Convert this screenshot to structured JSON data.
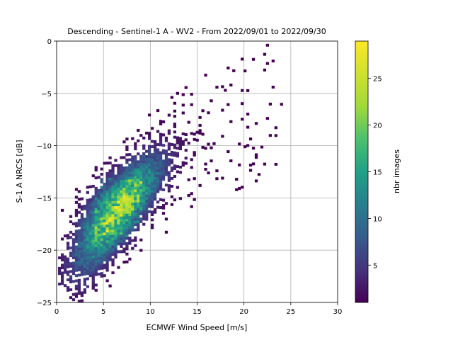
{
  "chart_data": {
    "type": "heatmap",
    "title": "Descending - Sentinel-1 A - WV2 - From 2022/09/01 to 2022/09/30",
    "xlabel": "ECMWF Wind Speed [m/s]",
    "ylabel": "S-1 A NRCS [dB]",
    "xlim": [
      0,
      30
    ],
    "ylim": [
      -25,
      0
    ],
    "xticks": [
      0,
      5,
      10,
      15,
      20,
      25,
      30
    ],
    "yticks": [
      0,
      -5,
      -10,
      -15,
      -20,
      -25
    ],
    "xtick_labels": [
      "0",
      "5",
      "10",
      "15",
      "20",
      "25",
      "30"
    ],
    "ytick_labels": [
      "0",
      "−5",
      "−10",
      "−15",
      "−20",
      "−25"
    ],
    "grid": true,
    "colormap": "viridis",
    "colorbar": {
      "label": "nbr images",
      "min": 1,
      "max": 29,
      "ticks": [
        5,
        10,
        15,
        20,
        25
      ],
      "tick_labels": [
        "5",
        "10",
        "15",
        "20",
        "25"
      ]
    },
    "density_ridge": [
      {
        "wind": 1,
        "nrcs": -21.5
      },
      {
        "wind": 3,
        "nrcs": -19.5
      },
      {
        "wind": 5,
        "nrcs": -17.5
      },
      {
        "wind": 7,
        "nrcs": -15.8
      },
      {
        "wind": 9,
        "nrcs": -14.0
      },
      {
        "wind": 11,
        "nrcs": -12.5
      },
      {
        "wind": 13,
        "nrcs": -11.2
      },
      {
        "wind": 15,
        "nrcs": -10.0
      },
      {
        "wind": 18,
        "nrcs": -8.5
      },
      {
        "wind": 21,
        "nrcs": -7.3
      }
    ],
    "peak_count_region": {
      "wind": [
        4,
        9
      ],
      "nrcs": [
        -19,
        -13
      ]
    }
  }
}
